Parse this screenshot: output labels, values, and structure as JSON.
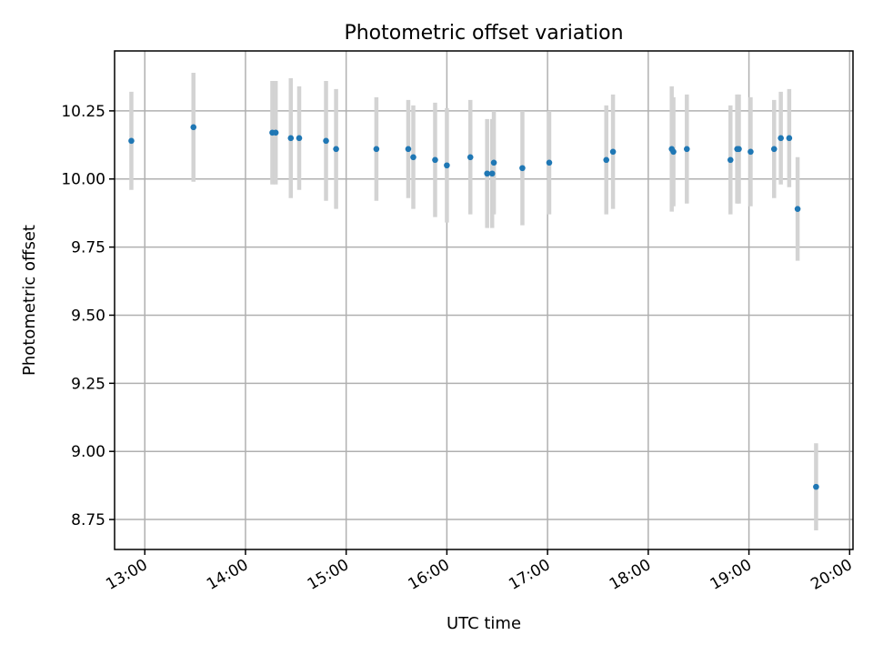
{
  "chart_data": {
    "type": "scatter",
    "title": "Photometric offset variation",
    "xlabel": "UTC time",
    "ylabel": "Photometric offset",
    "x_axis": "time",
    "xlim": [
      "12:42",
      "20:02"
    ],
    "ylim": [
      8.64,
      10.47
    ],
    "x_ticks": [
      "13:00",
      "14:00",
      "15:00",
      "16:00",
      "17:00",
      "18:00",
      "19:00",
      "20:00"
    ],
    "y_ticks": [
      "8.75",
      "9.00",
      "9.25",
      "9.50",
      "9.75",
      "10.00",
      "10.25"
    ],
    "grid": true,
    "colors": {
      "marker": "#1f77b4",
      "errorbar": "#d3d3d3",
      "grid": "#b0b0b0"
    },
    "points": [
      {
        "x": "12:52",
        "y": 10.14,
        "err": 0.18
      },
      {
        "x": "13:29",
        "y": 10.19,
        "err": 0.2
      },
      {
        "x": "14:16",
        "y": 10.17,
        "err": 0.19
      },
      {
        "x": "14:18",
        "y": 10.17,
        "err": 0.19
      },
      {
        "x": "14:27",
        "y": 10.15,
        "err": 0.22
      },
      {
        "x": "14:32",
        "y": 10.15,
        "err": 0.19
      },
      {
        "x": "14:48",
        "y": 10.14,
        "err": 0.22
      },
      {
        "x": "14:54",
        "y": 10.11,
        "err": 0.22
      },
      {
        "x": "15:18",
        "y": 10.11,
        "err": 0.19
      },
      {
        "x": "15:37",
        "y": 10.11,
        "err": 0.18
      },
      {
        "x": "15:40",
        "y": 10.08,
        "err": 0.19
      },
      {
        "x": "15:53",
        "y": 10.07,
        "err": 0.21
      },
      {
        "x": "16:00",
        "y": 10.05,
        "err": 0.21
      },
      {
        "x": "16:14",
        "y": 10.08,
        "err": 0.21
      },
      {
        "x": "16:24",
        "y": 10.02,
        "err": 0.2
      },
      {
        "x": "16:27",
        "y": 10.02,
        "err": 0.2
      },
      {
        "x": "16:28",
        "y": 10.06,
        "err": 0.19
      },
      {
        "x": "16:45",
        "y": 10.04,
        "err": 0.21
      },
      {
        "x": "17:01",
        "y": 10.06,
        "err": 0.19
      },
      {
        "x": "17:35",
        "y": 10.07,
        "err": 0.2
      },
      {
        "x": "17:39",
        "y": 10.1,
        "err": 0.21
      },
      {
        "x": "18:14",
        "y": 10.11,
        "err": 0.23
      },
      {
        "x": "18:15",
        "y": 10.1,
        "err": 0.2
      },
      {
        "x": "18:23",
        "y": 10.11,
        "err": 0.2
      },
      {
        "x": "18:49",
        "y": 10.07,
        "err": 0.2
      },
      {
        "x": "18:53",
        "y": 10.11,
        "err": 0.2
      },
      {
        "x": "18:54",
        "y": 10.11,
        "err": 0.2
      },
      {
        "x": "19:01",
        "y": 10.1,
        "err": 0.2
      },
      {
        "x": "19:15",
        "y": 10.11,
        "err": 0.18
      },
      {
        "x": "19:19",
        "y": 10.15,
        "err": 0.17
      },
      {
        "x": "19:24",
        "y": 10.15,
        "err": 0.18
      },
      {
        "x": "19:29",
        "y": 9.89,
        "err": 0.19
      },
      {
        "x": "19:40",
        "y": 8.87,
        "err": 0.16
      }
    ]
  }
}
